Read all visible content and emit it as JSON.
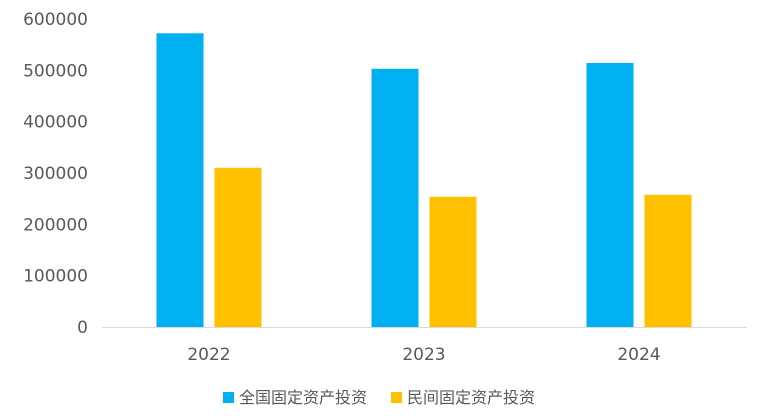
{
  "chart_data": {
    "type": "bar",
    "categories": [
      "2022",
      "2023",
      "2024"
    ],
    "series": [
      {
        "name": "全国固定资产投资",
        "values": [
          572138,
          503036,
          514374
        ],
        "color": "#00B0F0"
      },
      {
        "name": "民间固定资产投资",
        "values": [
          310145,
          253544,
          257574
        ],
        "color": "#FFC000"
      }
    ],
    "ylim": [
      0,
      600000
    ],
    "yticks": [
      0,
      100000,
      200000,
      300000,
      400000,
      500000,
      600000
    ],
    "grid": false,
    "legend_position": "bottom",
    "title": "",
    "xlabel": "",
    "ylabel": ""
  }
}
